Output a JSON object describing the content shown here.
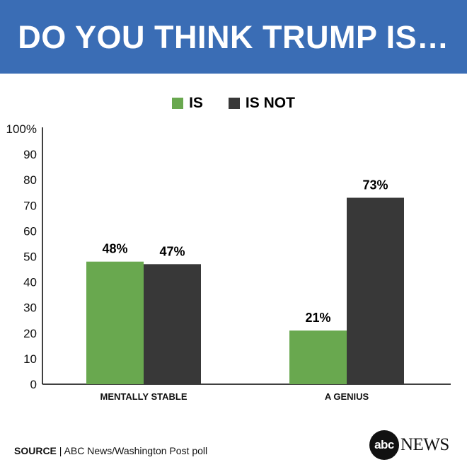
{
  "header": {
    "title": "DO YOU THINK TRUMP IS…"
  },
  "colors": {
    "header_bg": "#3a6db5",
    "is": "#69a84f",
    "is_not": "#383838"
  },
  "chart_data": {
    "type": "bar",
    "title": "DO YOU THINK TRUMP IS…",
    "categories": [
      "MENTALLY STABLE",
      "A GENIUS"
    ],
    "series": [
      {
        "name": "IS",
        "values": [
          48,
          21
        ],
        "labels": [
          "48%",
          "21%"
        ],
        "color": "#69a84f"
      },
      {
        "name": "IS NOT",
        "values": [
          47,
          73
        ],
        "labels": [
          "47%",
          "73%"
        ],
        "color": "#383838"
      }
    ],
    "yticks": [
      0,
      10,
      20,
      30,
      40,
      50,
      60,
      70,
      80,
      90,
      100
    ],
    "ytick_labels": [
      "0",
      "10",
      "20",
      "30",
      "40",
      "50",
      "60",
      "70",
      "80",
      "90",
      "100%"
    ],
    "ylim": [
      0,
      100
    ],
    "xlabel": "",
    "ylabel": "",
    "grid": false,
    "legend": "top-center"
  },
  "footer": {
    "source_label": "SOURCE",
    "source_text": "| ABC News/Washington Post poll",
    "logo_abc": "abc",
    "logo_news": "NEWS"
  }
}
